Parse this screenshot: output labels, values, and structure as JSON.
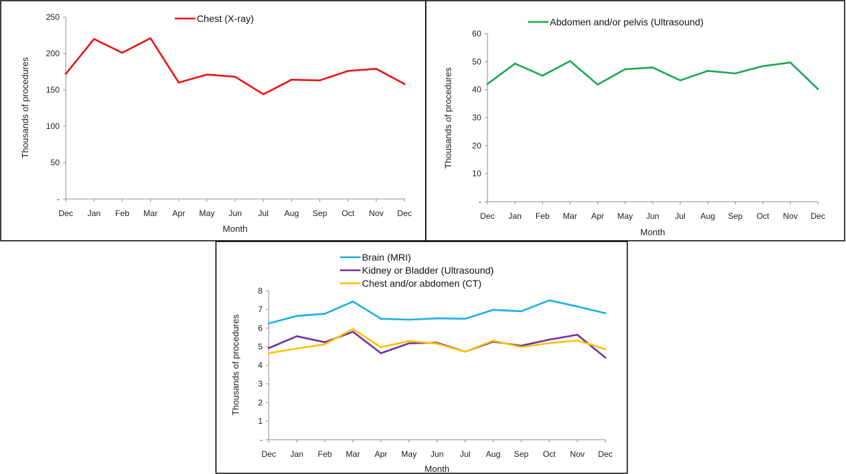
{
  "chart_data": [
    {
      "type": "line",
      "categories": [
        "Dec",
        "Jan",
        "Feb",
        "Mar",
        "Apr",
        "May",
        "Jun",
        "Jul",
        "Aug",
        "Sep",
        "Oct",
        "Nov",
        "Dec"
      ],
      "series": [
        {
          "name": "Chest (X-ray)",
          "color": "#ee1111",
          "values": [
            172,
            220,
            201,
            221,
            160,
            171,
            168,
            144,
            164,
            163,
            176,
            179,
            158
          ]
        }
      ],
      "xlabel": "Month",
      "ylabel": "Thousands of procedures",
      "ylim": [
        0,
        250
      ],
      "yticks": [
        0,
        50,
        100,
        150,
        200,
        250
      ],
      "ytick_labels": [
        "-",
        "50",
        "100",
        "150",
        "200",
        "250"
      ],
      "grid": false,
      "legend_position": "top"
    },
    {
      "type": "line",
      "categories": [
        "Dec",
        "Jan",
        "Feb",
        "Mar",
        "Apr",
        "May",
        "Jun",
        "Jul",
        "Aug",
        "Sep",
        "Oct",
        "Nov",
        "Dec"
      ],
      "series": [
        {
          "name": "Abdomen and/or pelvis  (Ultrasound)",
          "color": "#1aa84f",
          "values": [
            42.0,
            49.3,
            45.0,
            50.2,
            41.8,
            47.3,
            47.9,
            43.3,
            46.7,
            45.8,
            48.4,
            49.7,
            40.2
          ]
        }
      ],
      "xlabel": "Month",
      "ylabel": "Thousands of procedures",
      "ylim": [
        0,
        60
      ],
      "yticks": [
        0,
        10,
        20,
        30,
        40,
        50,
        60
      ],
      "ytick_labels": [
        "-",
        "10",
        "20",
        "30",
        "40",
        "50",
        "60"
      ],
      "grid": false,
      "legend_position": "top"
    },
    {
      "type": "line",
      "categories": [
        "Dec",
        "Jan",
        "Feb",
        "Mar",
        "Apr",
        "May",
        "Jun",
        "Jul",
        "Aug",
        "Sep",
        "Oct",
        "Nov",
        "Dec"
      ],
      "series": [
        {
          "name": "Brain (MRI)",
          "color": "#1eaee6",
          "values": [
            6.25,
            6.65,
            6.77,
            7.43,
            6.5,
            6.45,
            6.52,
            6.5,
            6.98,
            6.9,
            7.49,
            7.16,
            6.8
          ]
        },
        {
          "name": "Kidney or Bladder (Ultrasound)",
          "color": "#7030a0",
          "values": [
            4.92,
            5.56,
            5.24,
            5.8,
            4.65,
            5.18,
            5.21,
            4.73,
            5.27,
            5.05,
            5.38,
            5.64,
            4.41
          ]
        },
        {
          "name": "Chest and/or abdomen (CT)",
          "color": "#ffc000",
          "values": [
            4.65,
            4.9,
            5.13,
            5.95,
            4.97,
            5.3,
            5.16,
            4.73,
            5.32,
            4.98,
            5.19,
            5.33,
            4.87
          ]
        }
      ],
      "xlabel": "Month",
      "ylabel": "Thousands of procedures",
      "ylim": [
        0,
        8
      ],
      "yticks": [
        0,
        1,
        2,
        3,
        4,
        5,
        6,
        7,
        8
      ],
      "ytick_labels": [
        "-",
        "1",
        "2",
        "3",
        "4",
        "5",
        "6",
        "7",
        "8"
      ],
      "grid": false,
      "legend_position": "top-left"
    }
  ]
}
